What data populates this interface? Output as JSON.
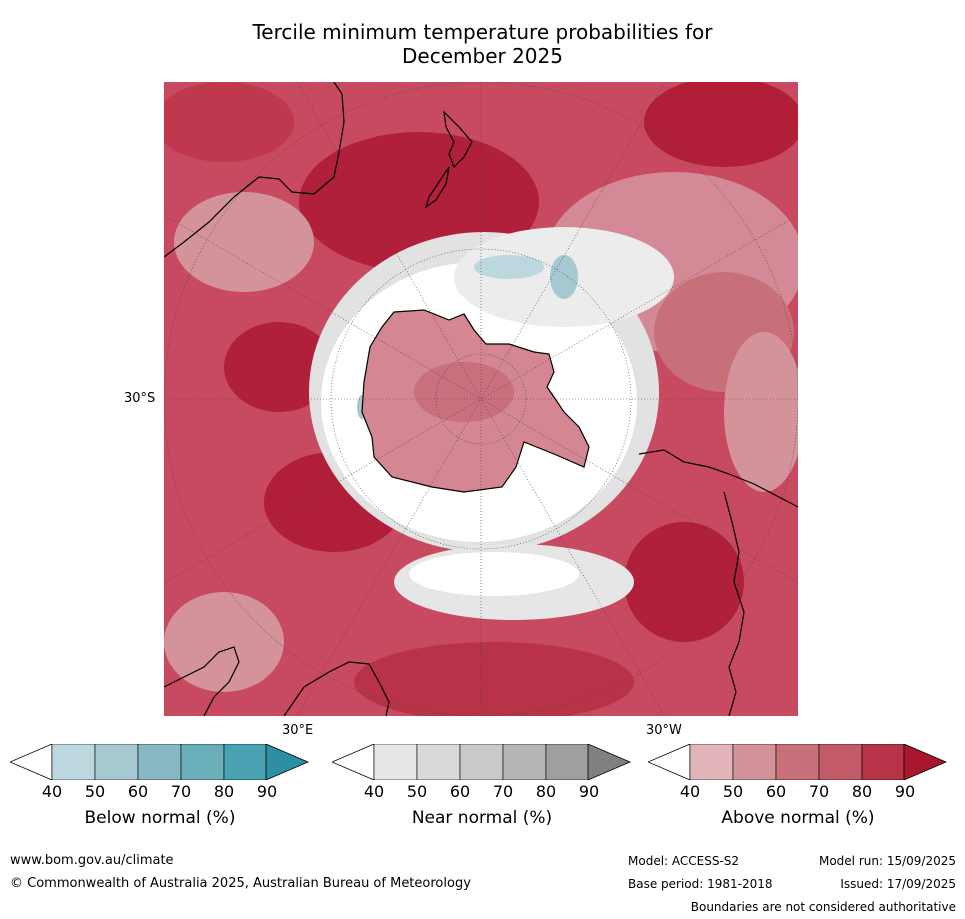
{
  "title_line1": "Tercile minimum temperature probabilities for",
  "title_line2": "December 2025",
  "map": {
    "projection": "south-polar-stereographic",
    "labels": {
      "lat": "30°S",
      "lon_east": "30°E",
      "lon_west": "30°W"
    },
    "colors": {
      "above": [
        "#e0b4b9",
        "#d4939b",
        "#c8707a",
        "#c25a68",
        "#b83348",
        "#a8172e"
      ],
      "near": [
        "#e6e6e6",
        "#d9d9d9",
        "#cacaca",
        "#b5b5b5",
        "#9f9f9f",
        "#808080"
      ],
      "below": [
        "#bdd7de",
        "#a6c8d0",
        "#88b8c4",
        "#6aaeba",
        "#48a2b2",
        "#2e8ea3"
      ],
      "coastline": "#000000",
      "graticule": "#444444"
    }
  },
  "colorbars": [
    {
      "label": "Below normal (%)",
      "ticks": [
        "40",
        "50",
        "60",
        "70",
        "80",
        "90"
      ],
      "colors": [
        "#bdd7de",
        "#a6c8d0",
        "#88b8c4",
        "#6aaeba",
        "#48a2b2",
        "#2e8ea3"
      ]
    },
    {
      "label": "Near normal (%)",
      "ticks": [
        "40",
        "50",
        "60",
        "70",
        "80",
        "90"
      ],
      "colors": [
        "#e6e6e6",
        "#d9d9d9",
        "#cacaca",
        "#b5b5b5",
        "#9f9f9f",
        "#808080"
      ]
    },
    {
      "label": "Above normal (%)",
      "ticks": [
        "40",
        "50",
        "60",
        "70",
        "80",
        "90"
      ],
      "colors": [
        "#e0b4b9",
        "#d4939b",
        "#c8707a",
        "#c25a68",
        "#b83348",
        "#a8172e"
      ]
    }
  ],
  "footer": {
    "url": "www.bom.gov.au/climate",
    "copyright": "© Commonwealth of Australia 2025, Australian Bureau of Meteorology",
    "model": "Model: ACCESS-S2",
    "model_run": "Model run: 15/09/2025",
    "base_period": "Base period: 1981-2018",
    "issued": "Issued: 17/09/2025",
    "disclaimer": "Boundaries are not considered authoritative"
  }
}
